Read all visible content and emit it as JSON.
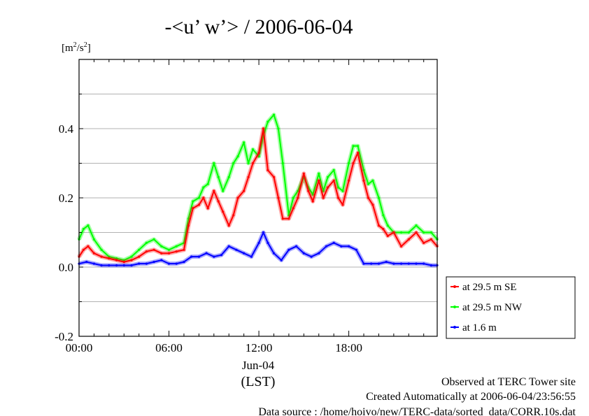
{
  "chart_data": {
    "type": "line",
    "title": "-<u’ w’> / 2006-06-04",
    "ylabel": "[m²/s²]",
    "ylabel_parts": {
      "open": "[m",
      "sup1": "2",
      "mid": "/s",
      "sup2": "2",
      "close": "]"
    },
    "xlabel": "(LST)",
    "x_date_label": "Jun-04",
    "xlim": [
      0,
      23.9
    ],
    "ylim": [
      -0.2,
      0.6
    ],
    "yticks": [
      {
        "value": -0.2,
        "label": "-0.2"
      },
      {
        "value": 0.0,
        "label": "0.0"
      },
      {
        "value": 0.2,
        "label": "0.2"
      },
      {
        "value": 0.4,
        "label": "0.4"
      }
    ],
    "ygrid": [
      -0.1,
      0.1,
      0.3,
      0.5
    ],
    "xticks": [
      {
        "value": 0,
        "label": "00:00"
      },
      {
        "value": 6,
        "label": "06:00"
      },
      {
        "value": 12,
        "label": "12:00"
      },
      {
        "value": 18,
        "label": "18:00"
      }
    ],
    "x_minor_ticks": [
      1,
      2,
      3,
      4,
      5,
      7,
      8,
      9,
      10,
      11,
      13,
      14,
      15,
      16,
      17,
      19,
      20,
      21,
      22,
      23
    ],
    "grid": "horizontal",
    "legend_position": "bottom-right outside",
    "series": [
      {
        "name": "at 29.5 m SE",
        "color": "#ff0000",
        "x": [
          0,
          0.3,
          0.6,
          1,
          1.5,
          2,
          2.5,
          3,
          3.5,
          4,
          4.5,
          5,
          5.5,
          6,
          6.5,
          7,
          7.3,
          7.6,
          8,
          8.3,
          8.6,
          9,
          9.3,
          9.6,
          10,
          10.3,
          10.6,
          11,
          11.3,
          11.6,
          12,
          12.3,
          12.6,
          13,
          13.3,
          13.6,
          14,
          14.3,
          14.6,
          15,
          15.3,
          15.6,
          16,
          16.3,
          16.6,
          17,
          17.3,
          17.6,
          18,
          18.3,
          18.6,
          19,
          19.3,
          19.6,
          20,
          20.3,
          20.6,
          21,
          21.5,
          22,
          22.5,
          23,
          23.5,
          23.9
        ],
        "y": [
          0.03,
          0.05,
          0.06,
          0.04,
          0.03,
          0.025,
          0.02,
          0.015,
          0.02,
          0.03,
          0.045,
          0.05,
          0.04,
          0.04,
          0.045,
          0.05,
          0.12,
          0.17,
          0.18,
          0.2,
          0.17,
          0.22,
          0.19,
          0.16,
          0.12,
          0.15,
          0.2,
          0.22,
          0.26,
          0.3,
          0.33,
          0.4,
          0.28,
          0.26,
          0.2,
          0.14,
          0.14,
          0.17,
          0.2,
          0.27,
          0.22,
          0.19,
          0.25,
          0.2,
          0.23,
          0.25,
          0.2,
          0.18,
          0.25,
          0.3,
          0.33,
          0.25,
          0.2,
          0.18,
          0.12,
          0.11,
          0.09,
          0.1,
          0.06,
          0.08,
          0.1,
          0.07,
          0.08,
          0.06
        ]
      },
      {
        "name": "at 29.5 m NW",
        "color": "#00ff00",
        "x": [
          0,
          0.3,
          0.6,
          1,
          1.5,
          2,
          2.5,
          3,
          3.5,
          4,
          4.5,
          5,
          5.5,
          6,
          6.5,
          7,
          7.3,
          7.6,
          8,
          8.3,
          8.6,
          9,
          9.3,
          9.6,
          10,
          10.3,
          10.6,
          11,
          11.3,
          11.6,
          12,
          12.3,
          12.6,
          13,
          13.3,
          13.6,
          14,
          14.3,
          14.6,
          15,
          15.3,
          15.6,
          16,
          16.3,
          16.6,
          17,
          17.3,
          17.6,
          18,
          18.3,
          18.6,
          19,
          19.3,
          19.6,
          20,
          20.3,
          20.6,
          21,
          21.5,
          22,
          22.5,
          23,
          23.5,
          23.9
        ],
        "y": [
          0.08,
          0.11,
          0.12,
          0.08,
          0.05,
          0.03,
          0.025,
          0.02,
          0.03,
          0.05,
          0.07,
          0.08,
          0.06,
          0.05,
          0.06,
          0.07,
          0.14,
          0.19,
          0.2,
          0.23,
          0.24,
          0.3,
          0.26,
          0.22,
          0.26,
          0.3,
          0.32,
          0.36,
          0.3,
          0.34,
          0.32,
          0.38,
          0.42,
          0.44,
          0.4,
          0.3,
          0.15,
          0.2,
          0.22,
          0.26,
          0.23,
          0.21,
          0.27,
          0.22,
          0.26,
          0.28,
          0.23,
          0.22,
          0.3,
          0.35,
          0.35,
          0.28,
          0.24,
          0.25,
          0.2,
          0.15,
          0.12,
          0.1,
          0.1,
          0.1,
          0.12,
          0.1,
          0.1,
          0.08
        ]
      },
      {
        "name": "at 1.6 m",
        "color": "#0000ff",
        "x": [
          0,
          0.5,
          1,
          1.5,
          2,
          2.5,
          3,
          3.5,
          4,
          4.5,
          5,
          5.5,
          6,
          6.5,
          7,
          7.5,
          8,
          8.5,
          9,
          9.5,
          10,
          10.5,
          11,
          11.5,
          12,
          12.3,
          12.6,
          13,
          13.5,
          14,
          14.5,
          15,
          15.5,
          16,
          16.5,
          17,
          17.5,
          18,
          18.5,
          19,
          19.5,
          20,
          20.5,
          21,
          21.5,
          22,
          22.5,
          23,
          23.5,
          23.9
        ],
        "y": [
          0.01,
          0.015,
          0.01,
          0.005,
          0.005,
          0.005,
          0.005,
          0.005,
          0.01,
          0.01,
          0.015,
          0.02,
          0.01,
          0.01,
          0.015,
          0.03,
          0.03,
          0.04,
          0.03,
          0.035,
          0.06,
          0.05,
          0.04,
          0.03,
          0.07,
          0.1,
          0.07,
          0.04,
          0.02,
          0.05,
          0.06,
          0.04,
          0.03,
          0.04,
          0.06,
          0.07,
          0.06,
          0.06,
          0.05,
          0.01,
          0.01,
          0.01,
          0.015,
          0.01,
          0.01,
          0.01,
          0.01,
          0.01,
          0.005,
          0.005
        ]
      }
    ]
  },
  "footer": {
    "line1": "Observed at TERC Tower site",
    "line2": "Created Automatically at 2006-06-04/23:56:55",
    "line3": "Data source : /home/hoivo/new/TERC-data/sorted_data/CORR.10s.dat"
  }
}
